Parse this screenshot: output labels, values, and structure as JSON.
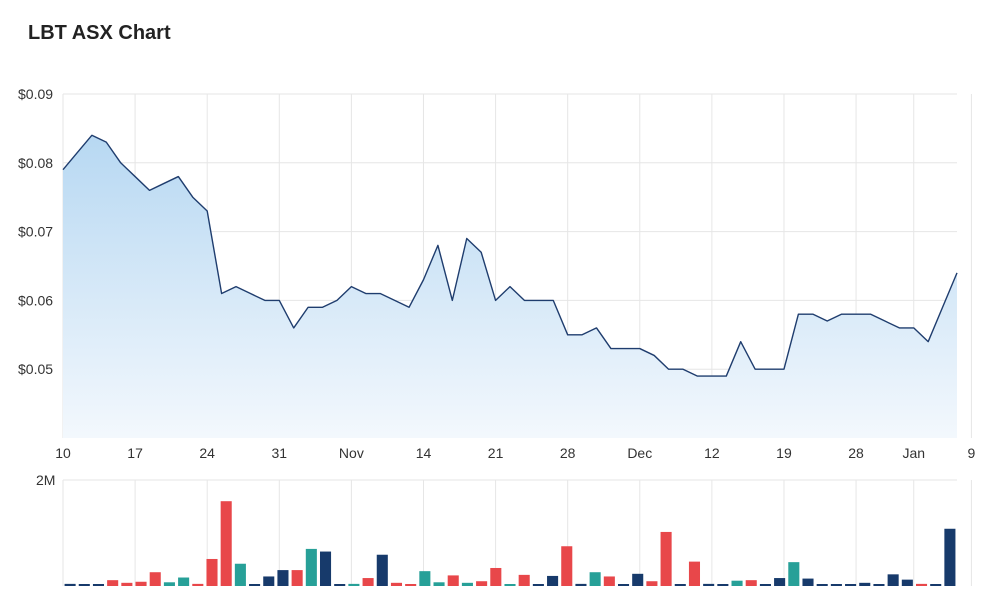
{
  "title": "LBT ASX Chart",
  "colors": {
    "line": "#1f3d6e",
    "area_top": "#b7d8f2",
    "area_bottom": "#f3f8fd",
    "grid": "#e6e6e6",
    "vol_red": "#e8474a",
    "vol_teal": "#27a098",
    "vol_navy": "#173a6b"
  },
  "chart_data": [
    {
      "type": "area",
      "title": "LBT ASX Chart",
      "ylim": [
        0.04,
        0.09
      ],
      "y_ticks": [
        "$0.09",
        "$0.08",
        "$0.07",
        "$0.06",
        "$0.05"
      ],
      "y_tick_values": [
        0.09,
        0.08,
        0.07,
        0.06,
        0.05
      ],
      "x_ticks": [
        "10",
        "17",
        "24",
        "31",
        "Nov",
        "14",
        "21",
        "28",
        "Dec",
        "12",
        "19",
        "28",
        "Jan",
        "9"
      ],
      "x_tick_index": [
        0,
        5,
        10,
        15,
        20,
        25,
        30,
        35,
        40,
        45,
        50,
        55,
        59,
        63
      ],
      "grid": true,
      "values": [
        0.079,
        0.0815,
        0.084,
        0.083,
        0.08,
        0.078,
        0.076,
        0.077,
        0.078,
        0.075,
        0.073,
        0.061,
        0.062,
        0.061,
        0.06,
        0.06,
        0.056,
        0.059,
        0.059,
        0.06,
        0.062,
        0.061,
        0.061,
        0.06,
        0.059,
        0.063,
        0.068,
        0.06,
        0.069,
        0.067,
        0.06,
        0.062,
        0.06,
        0.06,
        0.06,
        0.055,
        0.055,
        0.056,
        0.053,
        0.053,
        0.053,
        0.052,
        0.05,
        0.05,
        0.049,
        0.049,
        0.049,
        0.054,
        0.05,
        0.05,
        0.05,
        0.058,
        0.058,
        0.057,
        0.058,
        0.058,
        0.058,
        0.057,
        0.056,
        0.056,
        0.054,
        0.059,
        0.064
      ]
    },
    {
      "type": "bar",
      "ylim": [
        0,
        2000000
      ],
      "y_ticks": [
        "2M"
      ],
      "y_tick_values": [
        2000000
      ],
      "grid": true,
      "values": [
        40000,
        20000,
        30000,
        110000,
        60000,
        80000,
        260000,
        70000,
        160000,
        40000,
        510000,
        1600000,
        420000,
        0,
        180000,
        300000,
        300000,
        700000,
        650000,
        0,
        40000,
        150000,
        590000,
        60000,
        30000,
        280000,
        70000,
        200000,
        60000,
        90000,
        340000,
        30000,
        210000,
        0,
        190000,
        750000,
        40000,
        260000,
        180000,
        30000,
        230000,
        90000,
        1020000,
        0,
        460000,
        40000,
        30000,
        100000,
        110000,
        30000,
        150000,
        450000,
        140000,
        10000,
        10000,
        10000,
        60000,
        10000,
        220000,
        120000,
        40000,
        10000,
        1080000
      ],
      "bar_colors": [
        "navy",
        "navy",
        "navy",
        "red",
        "red",
        "red",
        "red",
        "teal",
        "teal",
        "red",
        "red",
        "red",
        "teal",
        "navy",
        "navy",
        "navy",
        "red",
        "teal",
        "navy",
        "navy",
        "teal",
        "red",
        "navy",
        "red",
        "red",
        "teal",
        "teal",
        "red",
        "teal",
        "red",
        "red",
        "teal",
        "red",
        "navy",
        "navy",
        "red",
        "navy",
        "teal",
        "red",
        "navy",
        "navy",
        "red",
        "red",
        "navy",
        "red",
        "navy",
        "navy",
        "teal",
        "red",
        "navy",
        "navy",
        "teal",
        "navy",
        "navy",
        "navy",
        "navy",
        "navy",
        "navy",
        "navy",
        "navy",
        "red",
        "navy",
        "navy"
      ]
    }
  ]
}
